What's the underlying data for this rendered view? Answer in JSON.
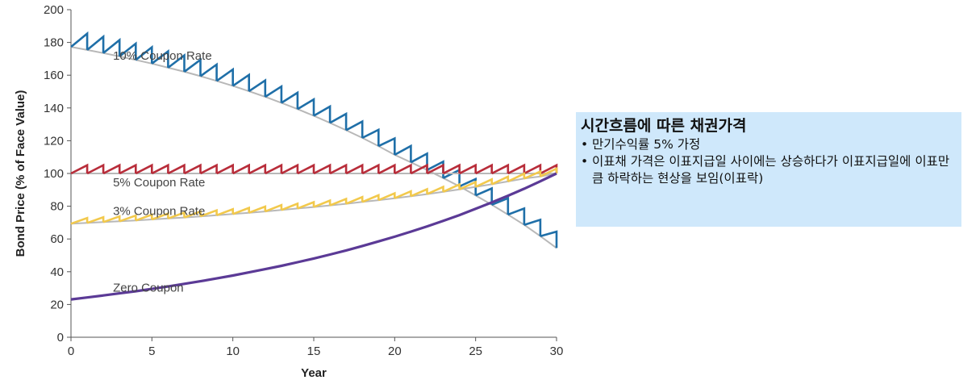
{
  "chart_data": {
    "type": "line",
    "xlabel": "Year",
    "ylabel": "Bond Price (% of Face Value)",
    "xlim": [
      0,
      30
    ],
    "ylim": [
      0,
      200
    ],
    "x_ticks": [
      0,
      5,
      10,
      15,
      20,
      25,
      30
    ],
    "y_ticks": [
      0,
      20,
      40,
      60,
      80,
      100,
      120,
      140,
      160,
      180,
      200
    ],
    "yield_to_maturity": 0.05,
    "series": [
      {
        "name": "10% Coupon Rate",
        "coupon": 10,
        "color": "#1f6fa8",
        "smooth_color": "#b8b8b8",
        "values": [
          177.3,
          175.4,
          173.5,
          171.5,
          169.3,
          167.1,
          164.6,
          162.1,
          159.4,
          156.5,
          153.5,
          150.2,
          146.8,
          143.1,
          139.3,
          135.2,
          130.9,
          126.4,
          121.7,
          116.7,
          111.4,
          106.8,
          102.1,
          97.2,
          92.1,
          86.6,
          80.9,
          74.9,
          68.6,
          61.7,
          54.5
        ]
      },
      {
        "name": "5% Coupon Rate",
        "coupon": 5,
        "color": "#b82d3a",
        "smooth_color": "#b8b8b8",
        "values": [
          100,
          100,
          100,
          100,
          100,
          100,
          100,
          100,
          100,
          100,
          100,
          100,
          100,
          100,
          100,
          100,
          100,
          100,
          100,
          100,
          100,
          100,
          100,
          100,
          100,
          100,
          100,
          100,
          100,
          100,
          100
        ]
      },
      {
        "name": "3% Coupon Rate",
        "coupon": 3,
        "color": "#f2c94c",
        "smooth_color": "#b8b8b8",
        "values": [
          69.3,
          69.8,
          70.3,
          70.8,
          71.3,
          71.9,
          72.5,
          73.1,
          73.8,
          74.5,
          75.2,
          76.0,
          76.8,
          77.7,
          78.6,
          79.5,
          80.5,
          81.5,
          82.6,
          83.7,
          84.9,
          86.1,
          87.4,
          88.8,
          90.3,
          91.8,
          93.4,
          95.1,
          96.9,
          98.2,
          100
        ]
      },
      {
        "name": "Zero Coupon",
        "coupon": 0,
        "color": "#5b3a96",
        "smooth_color": "#5b3a96",
        "values": [
          23.1,
          24.3,
          25.5,
          26.8,
          28.1,
          29.5,
          31.0,
          32.6,
          34.2,
          35.9,
          37.7,
          39.6,
          41.6,
          43.6,
          45.8,
          48.1,
          50.5,
          53.0,
          55.7,
          58.5,
          61.4,
          64.5,
          67.7,
          71.1,
          74.6,
          78.4,
          82.3,
          86.4,
          90.7,
          95.2,
          100
        ]
      }
    ]
  },
  "callout": {
    "title": "시간흐름에 따른 채권가격",
    "bullets": [
      "만기수익률 5% 가정",
      "이표채 가격은 이표지급일 사이에는 상승하다가 이표지급일에 이표만큼 하락하는 현상을 보임(이표락)"
    ]
  }
}
